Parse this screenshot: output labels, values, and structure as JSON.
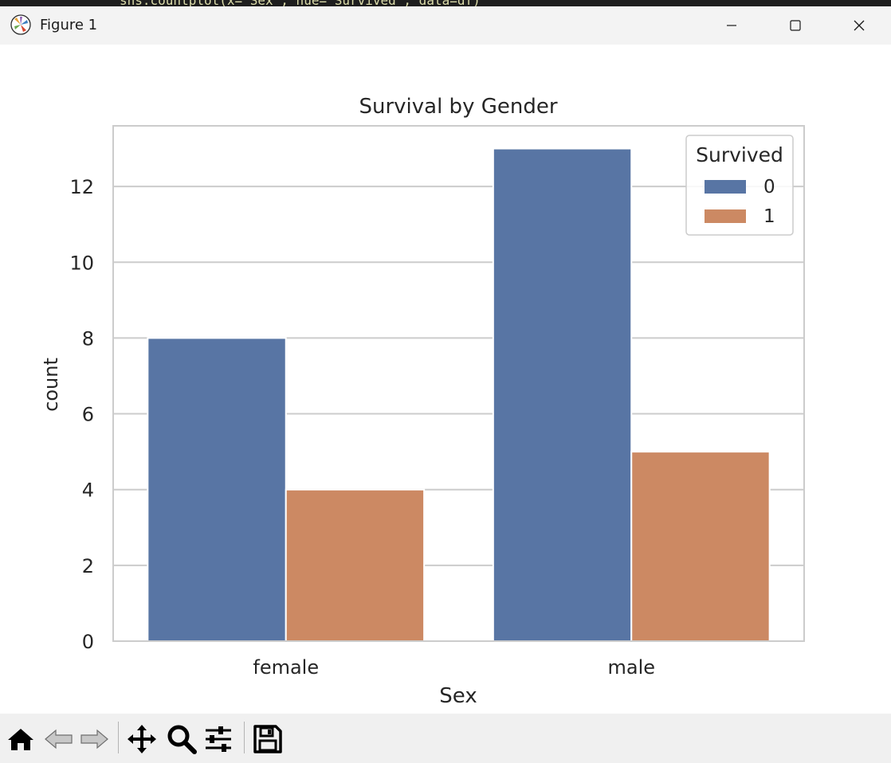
{
  "window": {
    "title": "Figure 1",
    "background_code": "sns.countplot(x='Sex', hue='Survived', data=df)"
  },
  "toolbar": {
    "buttons": [
      "home-icon",
      "back-icon",
      "forward-icon",
      "pan-icon",
      "zoom-icon",
      "configure-subplots-icon",
      "save-icon"
    ]
  },
  "chart_data": {
    "type": "bar",
    "title": "Survival by Gender",
    "xlabel": "Sex",
    "ylabel": "count",
    "categories": [
      "female",
      "male"
    ],
    "series": [
      {
        "name": "0",
        "values": [
          8,
          13
        ],
        "color": "#5875a4"
      },
      {
        "name": "1",
        "values": [
          4,
          5
        ],
        "color": "#cc8963"
      }
    ],
    "ylim": [
      0,
      13.6
    ],
    "yticks": [
      0,
      2,
      4,
      6,
      8,
      10,
      12
    ],
    "grid": true,
    "legend": {
      "title": "Survived",
      "placement": "top-right"
    }
  }
}
